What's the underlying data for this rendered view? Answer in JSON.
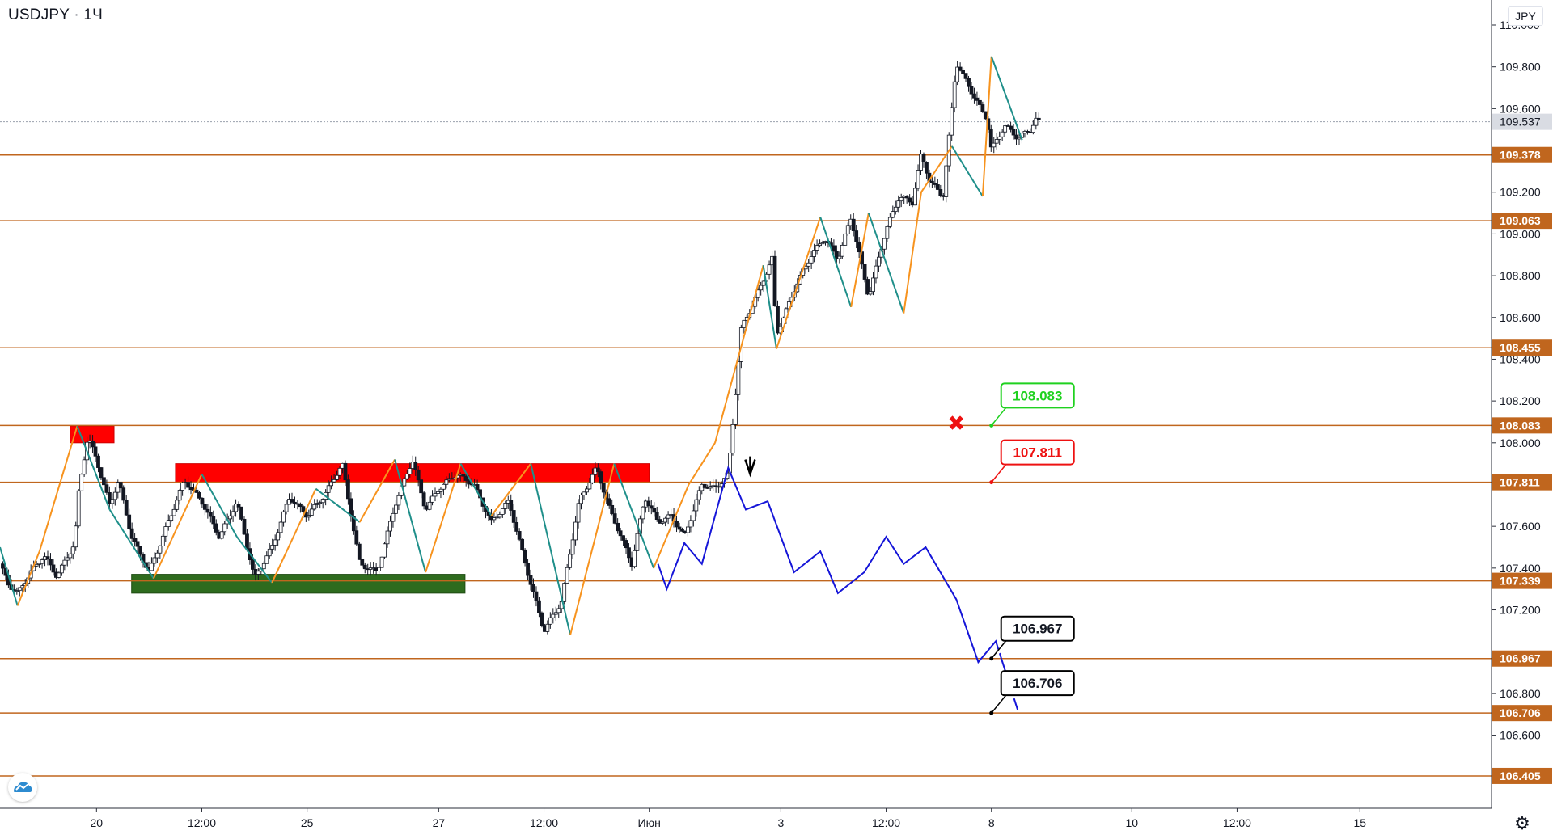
{
  "header": {
    "symbol": "USDJPY",
    "separator": "·",
    "interval": "1Ч"
  },
  "currency_badge": "JPY",
  "colors": {
    "level_line": "#c0661e",
    "candle": "#131722",
    "zigzag_up": "#f7931e",
    "zigzag_down": "#1f8f8a",
    "forecast": "#1515d8",
    "resistance_zone": "#ff0000",
    "support_zone": "#2e6b1e",
    "label_green": "#1fd11f",
    "label_red": "#ee1111",
    "label_black": "#000000",
    "current_price_badge": "#d9dce3"
  },
  "chart_data": {
    "type": "line",
    "title": "",
    "symbol": "USDJPY",
    "interval": "1Ч",
    "currency": "JPY",
    "y_axis": {
      "ylim": [
        106.25,
        110.12
      ],
      "ticks": [
        "110.000",
        "109.800",
        "109.600",
        "109.200",
        "109.000",
        "108.800",
        "108.600",
        "108.400",
        "108.200",
        "108.000",
        "107.600",
        "107.400",
        "107.200",
        "106.800",
        "106.600"
      ]
    },
    "x_axis": {
      "ticks": [
        "20",
        "12:00",
        "25",
        "27",
        "12:00",
        "Июн",
        "3",
        "12:00",
        "8",
        "10",
        "12:00",
        "15"
      ],
      "tick_index": [
        1.1,
        2.3,
        3.5,
        5.0,
        6.2,
        7.4,
        8.9,
        10.1,
        11.3,
        12.9,
        14.1,
        15.5
      ],
      "xlim": [
        0,
        17
      ]
    },
    "current_price": 109.537,
    "horizontal_levels": [
      109.378,
      109.063,
      108.455,
      108.083,
      107.811,
      107.339,
      106.967,
      106.706,
      106.405
    ],
    "price_series": {
      "x": [
        0,
        0.1,
        0.2,
        0.35,
        0.5,
        0.65,
        0.75,
        0.85,
        0.9,
        1.0,
        1.1,
        1.25,
        1.35,
        1.5,
        1.7,
        1.9,
        2.1,
        2.3,
        2.5,
        2.7,
        2.9,
        3.1,
        3.3,
        3.5,
        3.7,
        3.9,
        4.1,
        4.3,
        4.5,
        4.7,
        4.85,
        5.0,
        5.2,
        5.4,
        5.6,
        5.8,
        6.0,
        6.2,
        6.4,
        6.6,
        6.8,
        6.95,
        7.05,
        7.2,
        7.35,
        7.5,
        7.65,
        7.8,
        8.0,
        8.15,
        8.3,
        8.45,
        8.6,
        8.8,
        8.85,
        8.95,
        9.05,
        9.15,
        9.25,
        9.4,
        9.55,
        9.7,
        9.9,
        10.1,
        10.25,
        10.4,
        10.5,
        10.6,
        10.75,
        10.9,
        11.05,
        11.15,
        11.25,
        11.3,
        11.45,
        11.6,
        11.75,
        11.8,
        11.85
      ],
      "y": [
        107.42,
        107.32,
        107.28,
        107.38,
        107.46,
        107.36,
        107.44,
        107.52,
        107.78,
        108.03,
        107.92,
        107.7,
        107.82,
        107.55,
        107.38,
        107.6,
        107.82,
        107.72,
        107.55,
        107.72,
        107.35,
        107.5,
        107.74,
        107.65,
        107.75,
        107.9,
        107.42,
        107.38,
        107.7,
        107.92,
        107.68,
        107.78,
        107.85,
        107.8,
        107.62,
        107.72,
        107.4,
        107.1,
        107.24,
        107.72,
        107.88,
        107.68,
        107.58,
        107.42,
        107.74,
        107.62,
        107.65,
        107.55,
        107.8,
        107.78,
        107.85,
        108.55,
        108.68,
        108.88,
        108.52,
        108.62,
        108.73,
        108.82,
        108.9,
        108.98,
        108.88,
        109.08,
        108.7,
        109.02,
        109.18,
        109.15,
        109.38,
        109.25,
        109.18,
        109.82,
        109.7,
        109.62,
        109.55,
        109.4,
        109.52,
        109.46,
        109.5,
        109.55,
        109.53
      ]
    },
    "zigzag": {
      "x": [
        0,
        0.2,
        0.45,
        0.88,
        1.25,
        1.75,
        2.3,
        2.7,
        3.1,
        3.6,
        4.1,
        4.5,
        4.85,
        5.25,
        5.6,
        6.05,
        6.5,
        7.0,
        7.45,
        7.6,
        7.85,
        8.15,
        8.7,
        8.85,
        9.35,
        9.7,
        9.9,
        10.3,
        10.5,
        10.85,
        11.2,
        11.3,
        11.65
      ],
      "y": [
        107.5,
        107.22,
        107.48,
        108.08,
        107.68,
        107.35,
        107.85,
        107.55,
        107.33,
        107.78,
        107.62,
        107.92,
        107.38,
        107.9,
        107.65,
        107.9,
        107.08,
        107.9,
        107.4,
        107.55,
        107.8,
        108.0,
        108.85,
        108.45,
        109.08,
        108.65,
        109.1,
        108.62,
        109.2,
        109.42,
        109.18,
        109.85,
        109.45
      ]
    },
    "forecast_path": {
      "x": [
        7.5,
        7.6,
        7.8,
        8.0,
        8.3,
        8.5,
        8.75,
        9.05,
        9.35,
        9.55,
        9.85,
        10.1,
        10.3,
        10.55,
        10.9,
        11.15,
        11.35,
        11.6
      ],
      "y": [
        107.42,
        107.3,
        107.52,
        107.42,
        107.88,
        107.68,
        107.72,
        107.38,
        107.48,
        107.28,
        107.38,
        107.55,
        107.42,
        107.5,
        107.25,
        106.95,
        107.05,
        106.72
      ]
    },
    "zones": [
      {
        "kind": "resistance",
        "x": [
          0.8,
          1.3
        ],
        "y": [
          108.0,
          108.08
        ]
      },
      {
        "kind": "resistance",
        "x": [
          2.0,
          7.4
        ],
        "y": [
          107.81,
          107.9
        ]
      },
      {
        "kind": "support",
        "x": [
          1.5,
          5.3
        ],
        "y": [
          107.28,
          107.37
        ]
      }
    ],
    "annotations": [
      {
        "text": "108.083",
        "x": 11.3,
        "y": 108.083,
        "style": "green"
      },
      {
        "text": "107.811",
        "x": 11.3,
        "y": 107.811,
        "style": "red"
      },
      {
        "text": "106.967",
        "x": 11.3,
        "y": 106.967,
        "style": "black"
      },
      {
        "text": "106.706",
        "x": 11.3,
        "y": 106.706,
        "style": "black"
      }
    ],
    "markers": [
      {
        "kind": "cross",
        "x": 10.9,
        "y": 108.09
      },
      {
        "kind": "arrow-down",
        "x": 8.55,
        "y": 107.85
      }
    ],
    "grid": false
  }
}
